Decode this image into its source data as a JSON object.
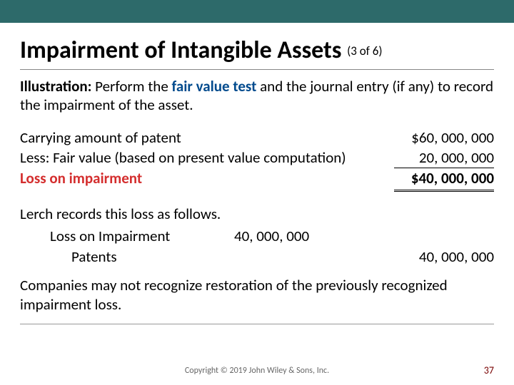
{
  "colors": {
    "topbar": "#2d6a6a",
    "highlight_text": "#004a8d",
    "result_label": "#d42e2e",
    "pagenum": "#780000"
  },
  "title": {
    "main": "Impairment of Intangible Assets",
    "note": "(3 of 6)"
  },
  "illustration": {
    "lead": "Illustration:",
    "before_highlight": " Perform the ",
    "highlight": "fair value test",
    "after_highlight": " and the journal entry (if any) to record the impairment of the asset."
  },
  "calc": {
    "rows": [
      {
        "label": "Carrying amount of patent",
        "value": "$60, 000, 000"
      },
      {
        "label": "Less: Fair value (based on present value computation)",
        "value": "20, 000, 000"
      }
    ],
    "result": {
      "label": "Loss on impairment",
      "value": "$40, 000, 000"
    }
  },
  "record_intro": "Lerch records this loss as follows.",
  "journal_entry": {
    "debit": {
      "account": "Loss on Impairment",
      "amount": "40, 000, 000"
    },
    "credit": {
      "account": "Patents",
      "amount": "40, 000, 000"
    }
  },
  "closing": "Companies may not recognize restoration of the previously recognized impairment loss.",
  "footer": {
    "copyright": "Copyright © 2019 John Wiley & Sons, Inc.",
    "page": "37"
  }
}
